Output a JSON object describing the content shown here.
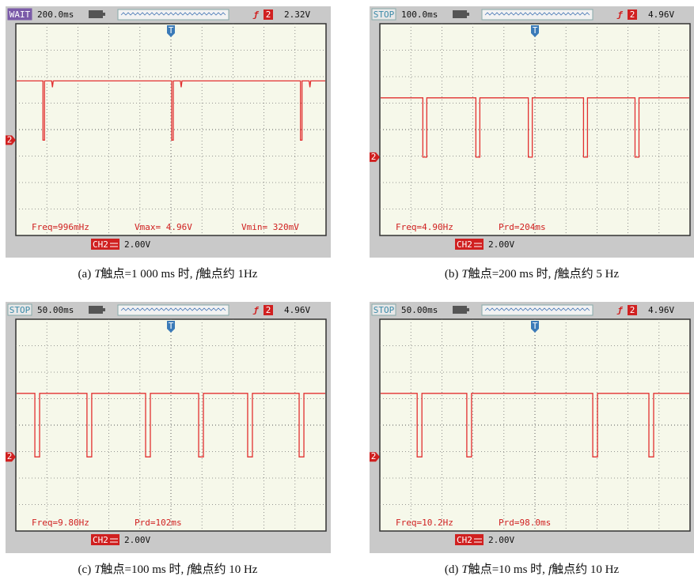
{
  "panels": [
    {
      "status": "WAIT",
      "timebase": "200.0ms",
      "trigger_channel": "2",
      "trigger_level": "2.32V",
      "trigger_marker": "T",
      "channel_marker": "2",
      "measurements": [
        "Freq=996mHz",
        "Vmax= 4.96V",
        "Vmin= 320mV"
      ],
      "channel": "CH2",
      "volts": "2.00V",
      "caption": {
        "label": "(a)",
        "var1": "T",
        "text1": "触点=1 000 ms 时,",
        "var2": "f",
        "text2": "触点约 1Hz"
      }
    },
    {
      "status": "STOP",
      "timebase": "100.0ms",
      "trigger_channel": "2",
      "trigger_level": "4.96V",
      "trigger_marker": "T",
      "channel_marker": "2",
      "measurements": [
        "Freq=4.90Hz",
        "Prd=204ms"
      ],
      "channel": "CH2",
      "volts": "2.00V",
      "caption": {
        "label": "(b)",
        "var1": "T",
        "text1": "触点=200 ms 时,",
        "var2": "f",
        "text2": "触点约 5 Hz"
      }
    },
    {
      "status": "STOP",
      "timebase": "50.00ms",
      "trigger_channel": "2",
      "trigger_level": "4.96V",
      "trigger_marker": "T",
      "channel_marker": "2",
      "measurements": [
        "Freq=9.80Hz",
        "Prd=102ms"
      ],
      "channel": "CH2",
      "volts": "2.00V",
      "caption": {
        "label": "(c)",
        "var1": "T",
        "text1": "触点=100 ms 时,",
        "var2": "f",
        "text2": "触点约 10 Hz"
      }
    },
    {
      "status": "STOP",
      "timebase": "50.00ms",
      "trigger_channel": "2",
      "trigger_level": "4.96V",
      "trigger_marker": "T",
      "channel_marker": "2",
      "measurements": [
        "Freq=10.2Hz",
        "Prd=98.0ms"
      ],
      "channel": "CH2",
      "volts": "2.00V",
      "caption": {
        "label": "(d)",
        "var1": "T",
        "text1": "触点=10 ms 时,",
        "var2": "f",
        "text2": "触点约 10 Hz"
      }
    }
  ]
}
